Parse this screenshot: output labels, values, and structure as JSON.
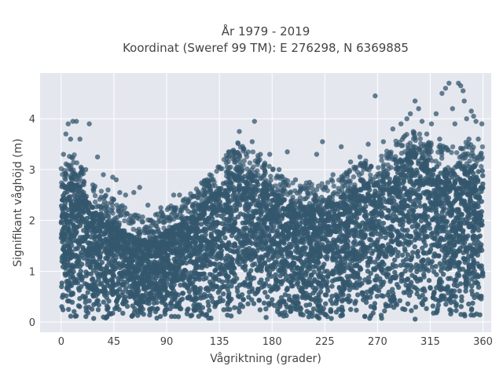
{
  "chart_data": {
    "type": "scatter",
    "title": [
      "År 1979 - 2019",
      "Koordinat (Sweref 99 TM): E 276298, N 6369885"
    ],
    "xlabel": "Vågriktning (grader)",
    "ylabel": "Signifikant våghöjd (m)",
    "xlim": [
      -18,
      367
    ],
    "ylim": [
      -0.2,
      4.9
    ],
    "xticks": [
      0,
      45,
      90,
      135,
      180,
      225,
      270,
      315,
      360
    ],
    "yticks": [
      0,
      1,
      2,
      3,
      4
    ],
    "grid": true,
    "background": "#e5e7ef",
    "gridcolor": "#ffffff",
    "marker_color": "#34576d",
    "dense_envelope": {
      "direction": [
        0,
        10,
        20,
        30,
        45,
        60,
        75,
        90,
        105,
        120,
        135,
        150,
        165,
        180,
        195,
        210,
        225,
        240,
        255,
        270,
        285,
        300,
        315,
        330,
        345,
        360
      ],
      "upper_height": [
        2.7,
        2.9,
        2.5,
        2.2,
        2.0,
        1.7,
        1.6,
        1.8,
        2.0,
        2.3,
        2.7,
        3.1,
        2.9,
        2.6,
        2.3,
        2.3,
        2.3,
        2.5,
        2.7,
        2.8,
        3.1,
        3.4,
        3.1,
        3.0,
        3.1,
        3.0
      ],
      "lower_height": 0.05
    },
    "outliers": [
      {
        "x": 2,
        "y": 3.3
      },
      {
        "x": 4,
        "y": 3.7
      },
      {
        "x": 6,
        "y": 3.9
      },
      {
        "x": 8,
        "y": 3.6
      },
      {
        "x": 10,
        "y": 3.95
      },
      {
        "x": 13,
        "y": 3.95
      },
      {
        "x": 16,
        "y": 3.6
      },
      {
        "x": 18,
        "y": 3.0
      },
      {
        "x": 21,
        "y": 3.0
      },
      {
        "x": 24,
        "y": 3.9
      },
      {
        "x": 27,
        "y": 2.7
      },
      {
        "x": 31,
        "y": 3.25
      },
      {
        "x": 36,
        "y": 2.9
      },
      {
        "x": 40,
        "y": 2.6
      },
      {
        "x": 44,
        "y": 2.85
      },
      {
        "x": 47,
        "y": 2.8
      },
      {
        "x": 50,
        "y": 2.55
      },
      {
        "x": 55,
        "y": 2.5
      },
      {
        "x": 62,
        "y": 2.55
      },
      {
        "x": 67,
        "y": 2.65
      },
      {
        "x": 74,
        "y": 2.3
      },
      {
        "x": 85,
        "y": 2.25
      },
      {
        "x": 96,
        "y": 2.5
      },
      {
        "x": 101,
        "y": 2.5
      },
      {
        "x": 108,
        "y": 2.35
      },
      {
        "x": 122,
        "y": 2.5
      },
      {
        "x": 135,
        "y": 3.05
      },
      {
        "x": 141,
        "y": 2.95
      },
      {
        "x": 148,
        "y": 3.3
      },
      {
        "x": 152,
        "y": 3.75
      },
      {
        "x": 156,
        "y": 3.4
      },
      {
        "x": 163,
        "y": 3.55
      },
      {
        "x": 165,
        "y": 3.95
      },
      {
        "x": 170,
        "y": 3.3
      },
      {
        "x": 178,
        "y": 3.3
      },
      {
        "x": 186,
        "y": 3.0
      },
      {
        "x": 193,
        "y": 3.35
      },
      {
        "x": 200,
        "y": 2.8
      },
      {
        "x": 212,
        "y": 2.75
      },
      {
        "x": 218,
        "y": 3.3
      },
      {
        "x": 223,
        "y": 3.55
      },
      {
        "x": 232,
        "y": 2.9
      },
      {
        "x": 239,
        "y": 3.45
      },
      {
        "x": 247,
        "y": 3.15
      },
      {
        "x": 255,
        "y": 3.25
      },
      {
        "x": 262,
        "y": 3.5
      },
      {
        "x": 268,
        "y": 4.45
      },
      {
        "x": 275,
        "y": 3.55
      },
      {
        "x": 283,
        "y": 3.8
      },
      {
        "x": 290,
        "y": 3.9
      },
      {
        "x": 295,
        "y": 4.0
      },
      {
        "x": 298,
        "y": 4.1
      },
      {
        "x": 302,
        "y": 4.35
      },
      {
        "x": 305,
        "y": 4.2
      },
      {
        "x": 308,
        "y": 3.95
      },
      {
        "x": 312,
        "y": 3.7
      },
      {
        "x": 316,
        "y": 3.9
      },
      {
        "x": 320,
        "y": 4.1
      },
      {
        "x": 323,
        "y": 3.6
      },
      {
        "x": 325,
        "y": 4.5
      },
      {
        "x": 328,
        "y": 4.6
      },
      {
        "x": 331,
        "y": 4.7
      },
      {
        "x": 334,
        "y": 4.2
      },
      {
        "x": 336,
        "y": 3.9
      },
      {
        "x": 339,
        "y": 4.7
      },
      {
        "x": 341,
        "y": 4.65
      },
      {
        "x": 343,
        "y": 4.55
      },
      {
        "x": 344,
        "y": 4.35
      },
      {
        "x": 346,
        "y": 4.0
      },
      {
        "x": 348,
        "y": 3.6
      },
      {
        "x": 350,
        "y": 4.15
      },
      {
        "x": 352,
        "y": 4.05
      },
      {
        "x": 354,
        "y": 3.95
      },
      {
        "x": 356,
        "y": 3.6
      },
      {
        "x": 358,
        "y": 3.3
      },
      {
        "x": 359,
        "y": 3.9
      }
    ]
  }
}
